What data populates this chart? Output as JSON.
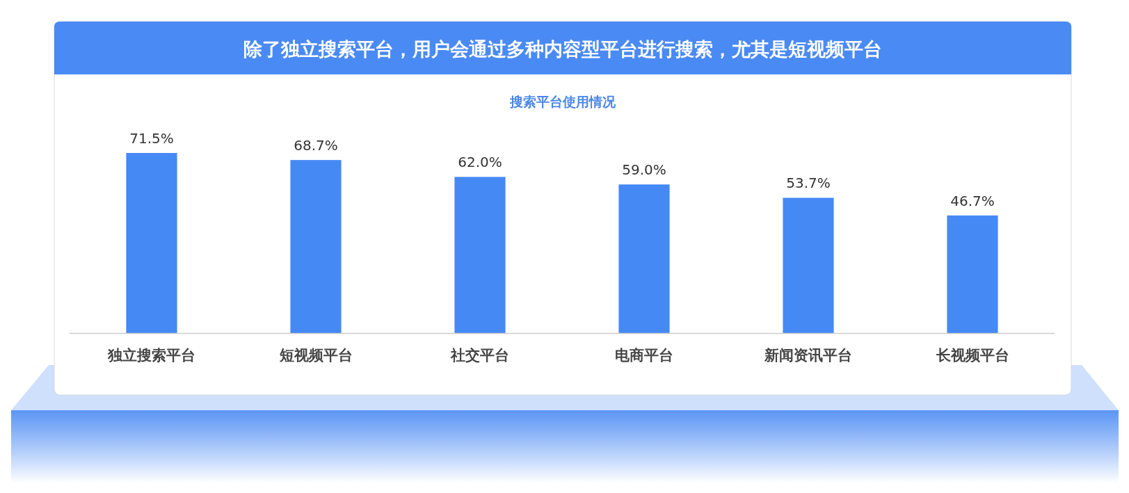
{
  "chart_data": {
    "type": "bar",
    "title": "除了独立搜索平台，用户会通过多种内容型平台进行搜索，尤其是短视频平台",
    "subtitle": "搜索平台使用情况",
    "categories": [
      "独立搜索平台",
      "短视频平台",
      "社交平台",
      "电商平台",
      "新闻资讯平台",
      "长视频平台"
    ],
    "values": [
      71.5,
      68.7,
      62.0,
      59.0,
      53.7,
      46.7
    ],
    "value_labels": [
      "71.5%",
      "68.7%",
      "62.0%",
      "59.0%",
      "53.7%",
      "46.7%"
    ],
    "color": "#4589f5"
  }
}
